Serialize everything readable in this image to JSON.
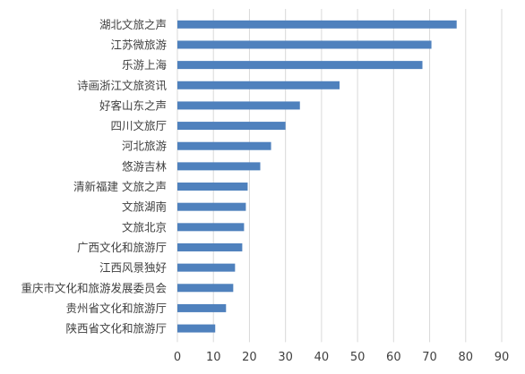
{
  "chart_data": {
    "type": "bar",
    "orientation": "horizontal",
    "title": "",
    "xlabel": "",
    "ylabel": "",
    "categories": [
      "湖北文旅之声",
      "江苏微旅游",
      "乐游上海",
      "诗画浙江文旅资讯",
      "好客山东之声",
      "四川文旅厅",
      "河北旅游",
      "悠游吉林",
      "清新福建 文旅之声",
      "文旅湖南",
      "文旅北京",
      "广西文化和旅游厅",
      "江西风景独好",
      "重庆市文化和旅游发展委员会",
      "贵州省文化和旅游厅",
      "陕西省文化和旅游厅"
    ],
    "values": [
      77.5,
      70.5,
      68,
      45,
      34,
      30,
      26,
      23,
      19.5,
      19,
      18.5,
      18,
      16,
      15.5,
      13.5,
      10.5
    ],
    "xlim": [
      0,
      90
    ],
    "xticks": [
      "0",
      "10",
      "20",
      "30",
      "40",
      "50",
      "60",
      "70",
      "80",
      "90"
    ],
    "grid": true,
    "bar_color": "#4f81bd",
    "grid_color": "#d9d9d9"
  }
}
